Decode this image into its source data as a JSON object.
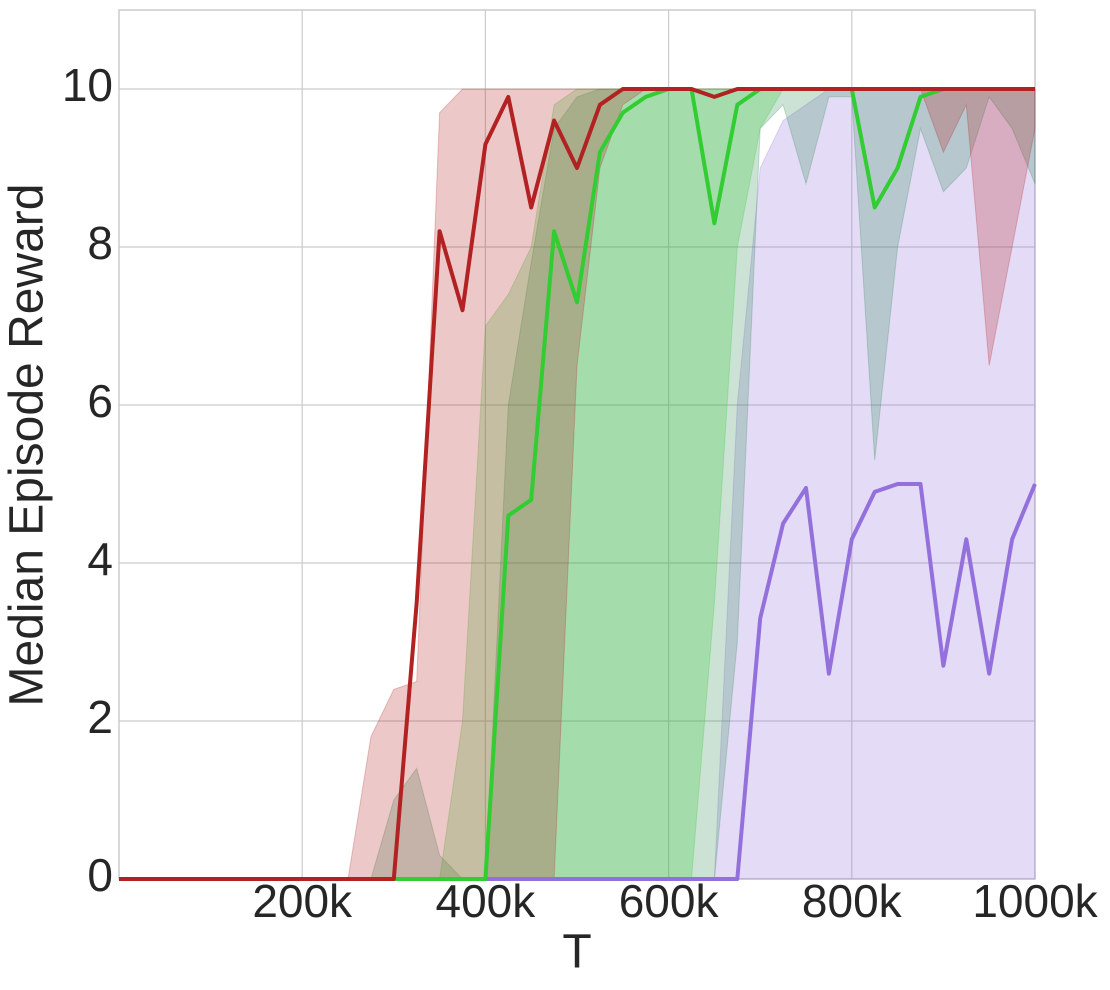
{
  "chart_data": {
    "type": "line",
    "xlabel": "T",
    "ylabel": "Median Episode Reward",
    "x": [
      0,
      25000,
      50000,
      75000,
      100000,
      125000,
      150000,
      175000,
      200000,
      225000,
      250000,
      275000,
      300000,
      325000,
      350000,
      375000,
      400000,
      425000,
      450000,
      475000,
      500000,
      525000,
      550000,
      575000,
      600000,
      625000,
      650000,
      675000,
      700000,
      725000,
      750000,
      775000,
      800000,
      825000,
      850000,
      875000,
      900000,
      925000,
      950000,
      975000,
      1000000
    ],
    "xlim": [
      0,
      1000000
    ],
    "xticks": [
      {
        "value": 200000,
        "label": "200k"
      },
      {
        "value": 400000,
        "label": "400k"
      },
      {
        "value": 600000,
        "label": "600k"
      },
      {
        "value": 800000,
        "label": "800k"
      },
      {
        "value": 1000000,
        "label": "1000k"
      }
    ],
    "ylim": [
      0,
      11
    ],
    "yticks": [
      0,
      2,
      4,
      6,
      8,
      10
    ],
    "grid": true,
    "band_opacity": 0.25,
    "series": [
      {
        "color": "#9370db",
        "values": [
          0,
          0,
          0,
          0,
          0,
          0,
          0,
          0,
          0,
          0,
          0,
          0,
          0,
          0,
          0,
          0,
          0,
          0,
          0,
          0,
          0,
          0,
          0,
          0,
          0,
          0,
          0,
          0,
          3.3,
          4.5,
          4.95,
          2.6,
          4.3,
          4.9,
          5.0,
          5.0,
          2.7,
          4.3,
          2.6,
          4.3,
          5.0
        ],
        "lower": [
          0,
          0,
          0,
          0,
          0,
          0,
          0,
          0,
          0,
          0,
          0,
          0,
          0,
          0,
          0,
          0,
          0,
          0,
          0,
          0,
          0,
          0,
          0,
          0,
          0,
          0,
          0,
          0,
          0,
          0,
          0,
          0,
          0,
          0,
          0,
          0,
          0,
          0,
          0,
          0,
          0
        ],
        "upper": [
          0,
          0,
          0,
          0,
          0,
          0,
          0,
          0,
          0,
          0,
          0,
          0,
          0,
          0,
          0,
          0,
          0,
          0,
          0,
          0,
          0,
          0,
          0,
          0,
          0,
          0,
          0,
          6,
          9.0,
          9.6,
          9.8,
          10,
          10,
          10,
          10,
          10,
          10,
          10,
          10,
          10,
          10
        ]
      },
      {
        "color": "#2e8b57",
        "lower": [
          0,
          0,
          0,
          0,
          0,
          0,
          0,
          0,
          0,
          0,
          0,
          0,
          0,
          0,
          0,
          0,
          0,
          0,
          0,
          0,
          0,
          0,
          0,
          0,
          0,
          0,
          0,
          3,
          9.5,
          9.8,
          8.8,
          9.9,
          9.9,
          5.3,
          8.0,
          9.5,
          8.7,
          9.0,
          9.9,
          9.5,
          8.8
        ],
        "upper": [
          0,
          0,
          0,
          0,
          0,
          0,
          0,
          0,
          0,
          0,
          0,
          0,
          1.0,
          1.4,
          0.3,
          0,
          0,
          6,
          7.8,
          9.5,
          9.9,
          10,
          10,
          10,
          10,
          10,
          10,
          10,
          10,
          10,
          10,
          10,
          10,
          10,
          10,
          10,
          10,
          10,
          10,
          10,
          10
        ]
      },
      {
        "color": "#32cd32",
        "values": [
          0,
          0,
          0,
          0,
          0,
          0,
          0,
          0,
          0,
          0,
          0,
          0,
          0,
          0,
          0,
          0,
          0,
          4.6,
          4.8,
          8.2,
          7.3,
          9.2,
          9.7,
          9.9,
          10,
          10,
          8.3,
          9.8,
          10,
          10,
          10,
          10,
          10,
          8.5,
          9.0,
          9.9,
          10,
          10,
          10,
          10,
          10
        ],
        "lower": [
          0,
          0,
          0,
          0,
          0,
          0,
          0,
          0,
          0,
          0,
          0,
          0,
          0,
          0,
          0,
          0,
          0,
          0,
          0,
          0,
          0,
          0,
          0,
          0,
          0,
          0,
          3.5,
          8,
          9.5,
          10,
          10,
          10,
          10,
          10,
          10,
          10,
          10,
          10,
          10,
          10,
          10
        ],
        "upper": [
          0,
          0,
          0,
          0,
          0,
          0,
          0,
          0,
          0,
          0,
          0,
          0,
          0,
          0,
          0,
          2,
          7,
          7.4,
          8,
          9.8,
          10,
          10,
          10,
          10,
          10,
          10,
          10,
          10,
          10,
          10,
          10,
          10,
          10,
          10,
          10,
          10,
          10,
          10,
          10,
          10,
          10
        ]
      },
      {
        "color": "#b22222",
        "values": [
          0,
          0,
          0,
          0,
          0,
          0,
          0,
          0,
          0,
          0,
          0,
          0,
          0,
          3.5,
          8.2,
          7.2,
          9.3,
          9.9,
          8.5,
          9.6,
          9.0,
          9.8,
          10,
          10,
          10,
          10,
          9.9,
          10,
          10,
          10,
          10,
          10,
          10,
          10,
          10,
          10,
          10,
          10,
          10,
          10,
          10
        ],
        "lower": [
          0,
          0,
          0,
          0,
          0,
          0,
          0,
          0,
          0,
          0,
          0,
          0,
          0,
          0,
          0,
          0,
          0,
          0,
          0,
          0,
          6.5,
          9,
          9.8,
          10,
          10,
          10,
          10,
          10,
          10,
          10,
          10,
          10,
          10,
          10,
          10,
          10,
          9.2,
          9.8,
          6.5,
          8.0,
          9.5
        ],
        "upper": [
          0,
          0,
          0,
          0,
          0,
          0,
          0,
          0,
          0,
          0,
          0,
          1.8,
          2.4,
          2.5,
          9.7,
          10,
          10,
          10,
          10,
          10,
          10,
          10,
          10,
          10,
          10,
          10,
          10,
          10,
          10,
          10,
          10,
          10,
          10,
          10,
          10,
          10,
          10,
          10,
          10,
          10,
          10
        ]
      }
    ]
  }
}
